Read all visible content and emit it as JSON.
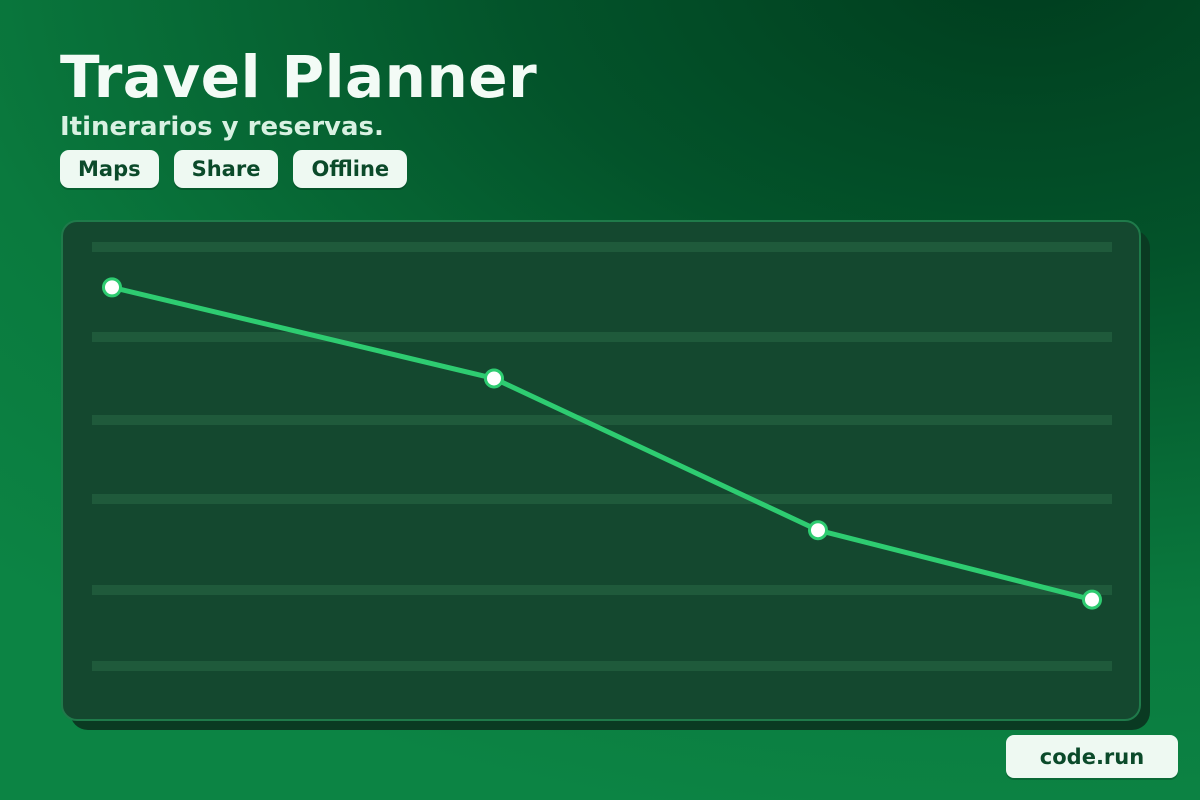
{
  "header": {
    "title": "Travel Planner",
    "subtitle": "Itinerarios y reservas."
  },
  "actions": [
    {
      "label": "Maps"
    },
    {
      "label": "Share"
    },
    {
      "label": "Offline"
    }
  ],
  "footer": {
    "badge_label": "code.run"
  },
  "colors": {
    "background": "#03532a",
    "panel": "#14482f",
    "line": "#2ecc71",
    "chip": "#eef9f2"
  },
  "chart_data": {
    "type": "line",
    "x": [
      0,
      1,
      2,
      3
    ],
    "series": [
      {
        "values": [
          92,
          71,
          36,
          20
        ]
      }
    ],
    "ylim": [
      4,
      102
    ],
    "grid": true,
    "title": "",
    "xlabel": "",
    "ylabel": ""
  }
}
